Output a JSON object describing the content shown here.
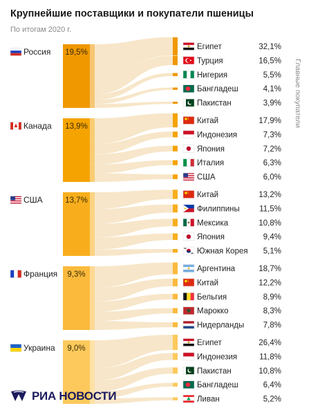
{
  "title": "Крупнейшие поставщики и покупатели пшеницы",
  "subtitle": "По итогам 2020 г.",
  "side_label": "Главные покупатели",
  "brand": "РИА НОВОСТИ",
  "colors": {
    "supplier_shades": [
      "#f09800",
      "#f5a300",
      "#f8ae1c",
      "#fbba3c",
      "#fdc95c"
    ],
    "flow": "#f6e2bf"
  },
  "chart_data": {
    "type": "sankey",
    "title": "Крупнейшие поставщики и покупатели пшеницы",
    "subtitle": "По итогам 2020 г.",
    "suppliers": [
      {
        "name": "Россия",
        "share": "19,5%",
        "value": 19.5,
        "flag": "flag-russia",
        "buyers": [
          {
            "name": "Египет",
            "share": "32,1%",
            "value": 32.1,
            "flag": "flag-egypt"
          },
          {
            "name": "Турция",
            "share": "16,5%",
            "value": 16.5,
            "flag": "flag-turkey"
          },
          {
            "name": "Нигерия",
            "share": "5,5%",
            "value": 5.5,
            "flag": "flag-nigeria"
          },
          {
            "name": "Бангладеш",
            "share": "4,1%",
            "value": 4.1,
            "flag": "flag-bangladesh"
          },
          {
            "name": "Пакистан",
            "share": "3,9%",
            "value": 3.9,
            "flag": "flag-pakistan"
          }
        ]
      },
      {
        "name": "Канада",
        "share": "13,9%",
        "value": 13.9,
        "flag": "flag-canada",
        "buyers": [
          {
            "name": "Китай",
            "share": "17,9%",
            "value": 17.9,
            "flag": "flag-china"
          },
          {
            "name": "Индонезия",
            "share": "7,3%",
            "value": 7.3,
            "flag": "flag-indonesia"
          },
          {
            "name": "Япония",
            "share": "7,2%",
            "value": 7.2,
            "flag": "flag-japan"
          },
          {
            "name": "Италия",
            "share": "6,3%",
            "value": 6.3,
            "flag": "flag-italy"
          },
          {
            "name": "США",
            "share": "6,0%",
            "value": 6.0,
            "flag": "flag-usa"
          }
        ]
      },
      {
        "name": "США",
        "share": "13,7%",
        "value": 13.7,
        "flag": "flag-usa",
        "buyers": [
          {
            "name": "Китай",
            "share": "13,2%",
            "value": 13.2,
            "flag": "flag-china"
          },
          {
            "name": "Филиппины",
            "share": "11,5%",
            "value": 11.5,
            "flag": "flag-philippines"
          },
          {
            "name": "Мексика",
            "share": "10,8%",
            "value": 10.8,
            "flag": "flag-mexico"
          },
          {
            "name": "Япония",
            "share": "9,4%",
            "value": 9.4,
            "flag": "flag-japan"
          },
          {
            "name": "Южная Корея",
            "share": "5,1%",
            "value": 5.1,
            "flag": "flag-south-korea"
          }
        ]
      },
      {
        "name": "Франция",
        "share": "9,3%",
        "value": 9.3,
        "flag": "flag-france",
        "buyers": [
          {
            "name": "Аргентина",
            "share": "18,7%",
            "value": 18.7,
            "flag": "flag-argentina"
          },
          {
            "name": "Китай",
            "share": "12,2%",
            "value": 12.2,
            "flag": "flag-china"
          },
          {
            "name": "Бельгия",
            "share": "8,9%",
            "value": 8.9,
            "flag": "flag-belgium"
          },
          {
            "name": "Марокко",
            "share": "8,3%",
            "value": 8.3,
            "flag": "flag-morocco"
          },
          {
            "name": "Нидерланды",
            "share": "7,8%",
            "value": 7.8,
            "flag": "flag-netherlands"
          }
        ]
      },
      {
        "name": "Украина",
        "share": "9,0%",
        "value": 9.0,
        "flag": "flag-ukraine",
        "buyers": [
          {
            "name": "Египет",
            "share": "26,4%",
            "value": 26.4,
            "flag": "flag-egypt"
          },
          {
            "name": "Индонезия",
            "share": "11,8%",
            "value": 11.8,
            "flag": "flag-indonesia"
          },
          {
            "name": "Пакистан",
            "share": "10,8%",
            "value": 10.8,
            "flag": "flag-pakistan"
          },
          {
            "name": "Бангладеш",
            "share": "6,4%",
            "value": 6.4,
            "flag": "flag-bangladesh"
          },
          {
            "name": "Ливан",
            "share": "5,2%",
            "value": 5.2,
            "flag": "flag-lebanon"
          }
        ]
      }
    ]
  }
}
